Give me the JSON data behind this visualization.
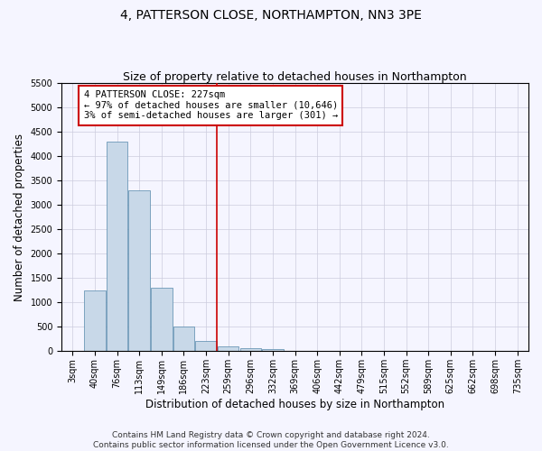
{
  "title": "4, PATTERSON CLOSE, NORTHAMPTON, NN3 3PE",
  "subtitle": "Size of property relative to detached houses in Northampton",
  "xlabel": "Distribution of detached houses by size in Northampton",
  "ylabel": "Number of detached properties",
  "categories": [
    "3sqm",
    "40sqm",
    "76sqm",
    "113sqm",
    "149sqm",
    "186sqm",
    "223sqm",
    "259sqm",
    "296sqm",
    "332sqm",
    "369sqm",
    "406sqm",
    "442sqm",
    "479sqm",
    "515sqm",
    "552sqm",
    "589sqm",
    "625sqm",
    "662sqm",
    "698sqm",
    "735sqm"
  ],
  "values": [
    0,
    1250,
    4300,
    3300,
    1300,
    500,
    200,
    100,
    70,
    50,
    0,
    0,
    0,
    0,
    0,
    0,
    0,
    0,
    0,
    0,
    0
  ],
  "bar_color": "#c8d8e8",
  "bar_edge_color": "#5588aa",
  "vline_x_index": 6.5,
  "vline_color": "#cc0000",
  "annotation_text": "4 PATTERSON CLOSE: 227sqm\n← 97% of detached houses are smaller (10,646)\n3% of semi-detached houses are larger (301) →",
  "annotation_box_color": "#ffffff",
  "annotation_box_edge_color": "#cc0000",
  "ylim": [
    0,
    5500
  ],
  "yticks": [
    0,
    500,
    1000,
    1500,
    2000,
    2500,
    3000,
    3500,
    4000,
    4500,
    5000,
    5500
  ],
  "footnote": "Contains HM Land Registry data © Crown copyright and database right 2024.\nContains public sector information licensed under the Open Government Licence v3.0.",
  "bg_color": "#f5f5ff",
  "plot_bg_color": "#f5f5ff",
  "grid_color": "#ccccdd",
  "title_fontsize": 10,
  "subtitle_fontsize": 9,
  "axis_label_fontsize": 8.5,
  "tick_fontsize": 7,
  "annotation_fontsize": 7.5,
  "footnote_fontsize": 6.5
}
